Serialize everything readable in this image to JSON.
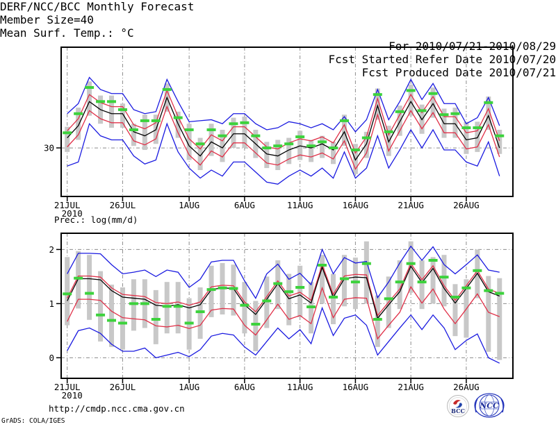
{
  "header": {
    "title": "DERF/NCC/BCC Monthly Forecast",
    "member_size": "Member Size=40",
    "variable_label": "Mean Surf. Temp.: °C",
    "for_period": "For 2010/07/21-2010/08/29",
    "refer_date": "Fcst Started Refer Date 2010/07/20",
    "produced_date": "Fcst Produced Date 2010/07/21"
  },
  "footer": {
    "url": "http://cmdp.ncc.cma.gov.cn",
    "grads_credit": "GrADS: COLA/IGES",
    "logos": [
      {
        "label": "BCC"
      },
      {
        "label": "NCC"
      }
    ]
  },
  "colors": {
    "blue_line": "#1a1ae0",
    "red_line": "#e03048",
    "black_line": "#000000",
    "green_marker": "#3cd23c",
    "spread_bar": "#c8c8c8",
    "gridline": "#8c8c8c",
    "frame": "#000000"
  },
  "chart_data": [
    {
      "type": "line",
      "title": "Mean Surf. Temp.: °C",
      "xlabel": "",
      "ylabel": "°C",
      "n_days": 40,
      "x_start_date": "21JUL2010",
      "x_end_date": "29AUG2010",
      "x_ticks": [
        {
          "day": 1,
          "label": "21JUL",
          "sub": "2010"
        },
        {
          "day": 6,
          "label": "26JUL"
        },
        {
          "day": 12,
          "label": "1AUG"
        },
        {
          "day": 17,
          "label": "6AUG"
        },
        {
          "day": 22,
          "label": "11AUG"
        },
        {
          "day": 27,
          "label": "16AUG"
        },
        {
          "day": 32,
          "label": "21AUG"
        },
        {
          "day": 37,
          "label": "26AUG"
        }
      ],
      "y_ticks": [
        30
      ],
      "ylim": [
        27.59,
        35.0
      ],
      "grid": true,
      "series": [
        {
          "name": "spread-bar",
          "kind": "bar",
          "top": [
            31.05,
            32.0,
            33.3,
            32.6,
            32.6,
            32.2,
            31.2,
            31.65,
            31.65,
            33.2,
            31.8,
            31.2,
            30.5,
            31.2,
            30.9,
            31.5,
            31.55,
            30.9,
            30.3,
            30.4,
            30.5,
            30.85,
            30.4,
            30.6,
            30.3,
            31.65,
            30.2,
            30.8,
            32.95,
            31.1,
            32.1,
            33.15,
            32.15,
            33.0,
            31.95,
            32.0,
            31.3,
            31.3,
            32.55,
            30.9
          ],
          "bottom": [
            29.8,
            30.4,
            31.6,
            31.2,
            31.0,
            31.0,
            30.1,
            29.9,
            30.2,
            31.8,
            30.5,
            29.4,
            28.9,
            29.6,
            29.3,
            30.0,
            30.0,
            29.5,
            29.0,
            28.9,
            29.2,
            29.4,
            29.3,
            29.5,
            29.2,
            30.1,
            28.7,
            29.5,
            31.4,
            29.6,
            30.6,
            31.6,
            30.7,
            31.5,
            30.5,
            30.5,
            29.7,
            29.8,
            30.9,
            29.7
          ]
        },
        {
          "name": "blue-lower-line",
          "kind": "line",
          "color_key": "blue_line",
          "values": [
            29.1,
            29.3,
            31.2,
            30.6,
            30.4,
            30.4,
            29.6,
            29.2,
            29.4,
            31.2,
            29.8,
            29.0,
            28.5,
            28.9,
            28.6,
            29.3,
            29.3,
            28.8,
            28.3,
            28.2,
            28.6,
            28.9,
            28.6,
            29.0,
            28.5,
            29.8,
            28.5,
            29.0,
            30.6,
            29.0,
            29.9,
            30.9,
            30.0,
            30.9,
            29.9,
            29.9,
            29.3,
            29.1,
            30.3,
            28.6
          ]
        },
        {
          "name": "blue-upper-line",
          "kind": "line",
          "color_key": "blue_line",
          "values": [
            31.7,
            32.2,
            33.5,
            32.9,
            32.7,
            32.7,
            31.9,
            31.7,
            31.8,
            33.4,
            32.3,
            31.3,
            31.35,
            31.4,
            31.2,
            31.7,
            31.7,
            31.2,
            30.9,
            31.0,
            31.3,
            31.2,
            31.0,
            31.2,
            30.9,
            31.55,
            30.8,
            31.4,
            32.9,
            31.4,
            32.3,
            33.4,
            32.4,
            33.2,
            32.2,
            32.2,
            31.2,
            31.5,
            32.5,
            31.1
          ]
        },
        {
          "name": "red-lower-line",
          "kind": "line",
          "color_key": "red_line",
          "values": [
            30.05,
            30.65,
            31.85,
            31.45,
            31.25,
            31.25,
            30.35,
            30.15,
            30.45,
            32.05,
            30.75,
            29.65,
            29.15,
            29.85,
            29.55,
            30.25,
            30.25,
            29.75,
            29.25,
            29.15,
            29.45,
            29.65,
            29.55,
            29.75,
            29.45,
            30.35,
            28.95,
            29.75,
            31.65,
            29.85,
            30.85,
            31.85,
            30.95,
            31.75,
            30.75,
            30.75,
            29.95,
            30.05,
            31.15,
            29.55
          ]
        },
        {
          "name": "red-upper-line",
          "kind": "line",
          "color_key": "red_line",
          "values": [
            30.85,
            31.45,
            32.65,
            32.25,
            32.05,
            32.05,
            31.15,
            30.95,
            31.25,
            32.85,
            31.55,
            30.45,
            29.95,
            30.65,
            30.35,
            31.05,
            31.05,
            30.55,
            30.05,
            29.95,
            30.25,
            30.45,
            30.35,
            30.55,
            30.25,
            31.15,
            29.75,
            30.55,
            32.45,
            30.65,
            31.65,
            32.65,
            31.75,
            32.55,
            31.55,
            31.55,
            30.75,
            30.85,
            31.95,
            30.35
          ]
        },
        {
          "name": "black-mean-line",
          "kind": "line",
          "color_key": "black_line",
          "values": [
            30.5,
            31.1,
            32.3,
            31.9,
            31.7,
            31.7,
            30.8,
            30.6,
            30.9,
            32.5,
            31.2,
            30.1,
            29.6,
            30.3,
            30.0,
            30.7,
            30.7,
            30.2,
            29.7,
            29.6,
            29.9,
            30.1,
            30.0,
            30.2,
            29.9,
            30.8,
            29.4,
            30.2,
            32.1,
            30.3,
            31.3,
            32.3,
            31.4,
            32.2,
            31.2,
            31.2,
            30.4,
            30.5,
            31.6,
            30.0
          ]
        },
        {
          "name": "green-marks",
          "kind": "dash",
          "color_key": "green_marker",
          "values": [
            30.75,
            31.7,
            33.0,
            32.3,
            32.3,
            31.9,
            30.9,
            31.35,
            31.35,
            32.9,
            31.5,
            30.9,
            30.2,
            30.9,
            30.6,
            31.2,
            31.25,
            30.6,
            30.0,
            30.1,
            30.2,
            30.55,
            30.1,
            30.3,
            30.0,
            31.35,
            29.9,
            30.5,
            32.65,
            30.8,
            31.8,
            32.85,
            31.85,
            32.7,
            31.65,
            31.7,
            31.0,
            31.0,
            32.25,
            30.6
          ]
        }
      ]
    },
    {
      "type": "line",
      "title": "Prec.: log(mm/d)",
      "xlabel": "",
      "ylabel": "log(mm/d)",
      "n_days": 40,
      "x_start_date": "21JUL2010",
      "x_end_date": "29AUG2010",
      "x_ticks": [
        {
          "day": 1,
          "label": "21JUL",
          "sub": "2010"
        },
        {
          "day": 6,
          "label": "26JUL"
        },
        {
          "day": 12,
          "label": "1AUG"
        },
        {
          "day": 17,
          "label": "6AUG"
        },
        {
          "day": 22,
          "label": "11AUG"
        },
        {
          "day": 27,
          "label": "16AUG"
        },
        {
          "day": 32,
          "label": "21AUG"
        },
        {
          "day": 37,
          "label": "26AUG"
        }
      ],
      "y_ticks": [
        0,
        1,
        2
      ],
      "ylim": [
        -0.38,
        2.3
      ],
      "grid": true,
      "series": [
        {
          "name": "spread-bar",
          "kind": "bar",
          "top": [
            1.86,
            1.97,
            1.9,
            1.6,
            1.35,
            1.3,
            1.45,
            1.45,
            1.25,
            1.4,
            1.4,
            1.1,
            1.3,
            1.7,
            1.75,
            1.72,
            1.4,
            1.05,
            1.5,
            1.8,
            1.55,
            1.7,
            1.4,
            1.9,
            1.55,
            1.9,
            1.85,
            2.15,
            1.15,
            1.5,
            1.8,
            2.15,
            1.8,
            1.86,
            1.9,
            1.36,
            1.45,
            2.0,
            1.51,
            1.47
          ],
          "bottom": [
            0.6,
            0.91,
            0.7,
            0.3,
            0.2,
            0.15,
            0.5,
            0.55,
            0.25,
            0.45,
            0.45,
            0.15,
            0.35,
            0.75,
            0.8,
            0.78,
            0.45,
            0.12,
            0.55,
            0.9,
            0.6,
            0.75,
            0.45,
            1.0,
            0.62,
            0.95,
            0.9,
            1.0,
            0.2,
            0.55,
            0.9,
            1.2,
            0.9,
            1.0,
            0.95,
            0.4,
            0.37,
            1.1,
            0.11,
            -0.04
          ]
        },
        {
          "name": "blue-lower-line",
          "kind": "line",
          "color_key": "blue_line",
          "values": [
            0.13,
            0.5,
            0.55,
            0.45,
            0.25,
            0.12,
            0.12,
            0.18,
            0.0,
            0.05,
            0.1,
            0.02,
            0.15,
            0.4,
            0.45,
            0.42,
            0.2,
            0.05,
            0.3,
            0.55,
            0.35,
            0.52,
            0.26,
            0.92,
            0.41,
            0.73,
            0.79,
            0.6,
            0.05,
            0.3,
            0.55,
            0.79,
            0.52,
            0.79,
            0.55,
            0.15,
            0.32,
            0.44,
            0.0,
            -0.1
          ]
        },
        {
          "name": "blue-upper-line",
          "kind": "line",
          "color_key": "blue_line",
          "values": [
            1.55,
            1.93,
            1.93,
            1.92,
            1.72,
            1.55,
            1.58,
            1.62,
            1.5,
            1.62,
            1.58,
            1.3,
            1.45,
            1.77,
            1.8,
            1.8,
            1.42,
            1.1,
            1.55,
            1.73,
            1.45,
            1.56,
            1.35,
            2.0,
            1.55,
            1.85,
            1.75,
            1.78,
            1.11,
            1.4,
            1.75,
            2.06,
            1.8,
            2.05,
            1.72,
            1.55,
            1.72,
            1.9,
            1.62,
            1.58
          ]
        },
        {
          "name": "red-lower-line",
          "kind": "line",
          "color_key": "red_line",
          "values": [
            0.67,
            1.08,
            1.08,
            1.06,
            0.86,
            0.74,
            0.72,
            0.7,
            0.59,
            0.57,
            0.6,
            0.54,
            0.6,
            0.88,
            0.91,
            0.9,
            0.6,
            0.42,
            0.7,
            0.99,
            0.71,
            0.78,
            0.63,
            1.29,
            0.74,
            1.08,
            1.11,
            1.1,
            0.35,
            0.6,
            0.84,
            1.31,
            1.01,
            1.27,
            0.9,
            0.63,
            0.9,
            1.18,
            0.84,
            0.76
          ]
        },
        {
          "name": "red-upper-line",
          "kind": "line",
          "color_key": "red_line",
          "values": [
            1.1,
            1.51,
            1.51,
            1.49,
            1.29,
            1.17,
            1.15,
            1.13,
            1.02,
            1.0,
            1.03,
            0.97,
            1.03,
            1.31,
            1.34,
            1.33,
            1.03,
            0.85,
            1.13,
            1.42,
            1.14,
            1.21,
            1.06,
            1.72,
            1.17,
            1.51,
            1.54,
            1.53,
            0.78,
            1.03,
            1.27,
            1.74,
            1.44,
            1.7,
            1.33,
            1.06,
            1.33,
            1.61,
            1.27,
            1.19
          ]
        },
        {
          "name": "black-mean-line",
          "kind": "line",
          "color_key": "black_line",
          "values": [
            1.05,
            1.46,
            1.46,
            1.44,
            1.24,
            1.12,
            1.1,
            1.08,
            0.97,
            0.95,
            0.98,
            0.92,
            0.98,
            1.26,
            1.29,
            1.28,
            0.98,
            0.8,
            1.08,
            1.37,
            1.09,
            1.16,
            1.01,
            1.67,
            1.12,
            1.46,
            1.49,
            1.48,
            0.73,
            0.98,
            1.22,
            1.69,
            1.39,
            1.65,
            1.28,
            1.01,
            1.28,
            1.56,
            1.22,
            1.14
          ]
        },
        {
          "name": "green-marks",
          "kind": "dash",
          "color_key": "green_marker",
          "values": [
            1.18,
            1.47,
            1.19,
            0.79,
            0.69,
            0.64,
            1.0,
            1.0,
            0.71,
            0.95,
            0.95,
            0.64,
            0.85,
            1.26,
            1.29,
            1.28,
            0.97,
            0.62,
            1.05,
            1.37,
            1.22,
            1.3,
            0.94,
            1.71,
            1.12,
            1.46,
            1.4,
            1.74,
            0.71,
            1.09,
            1.4,
            1.74,
            1.4,
            1.8,
            1.49,
            1.12,
            1.29,
            1.61,
            1.24,
            1.19
          ]
        }
      ]
    }
  ]
}
